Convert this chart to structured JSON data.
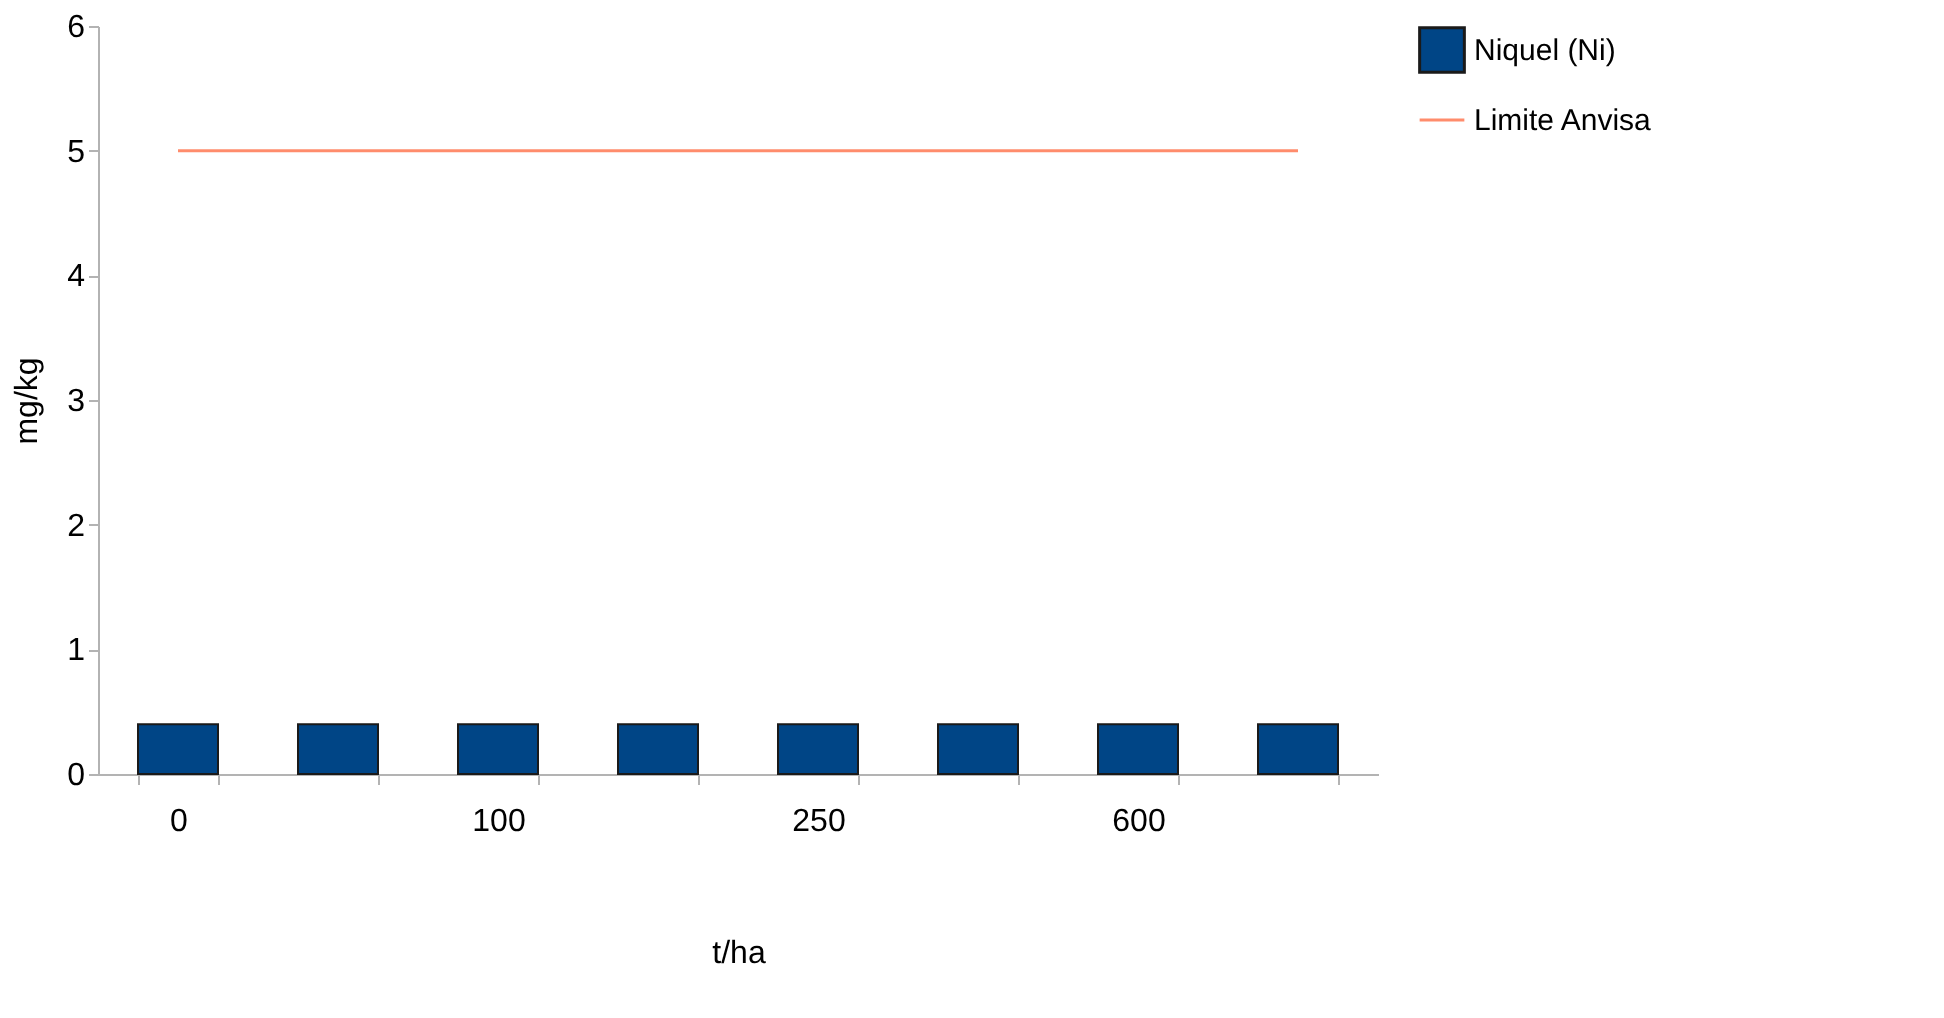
{
  "chart_data": {
    "type": "bar",
    "categories": [
      "0",
      null,
      "100",
      null,
      "250",
      null,
      "600",
      null
    ],
    "xlabel": "t/ha",
    "ylabel": "mg/kg",
    "ylim": [
      0,
      6
    ],
    "yticks": [
      0,
      1,
      2,
      3,
      4,
      5,
      6
    ],
    "grid": false,
    "legend": "right",
    "series": [
      {
        "name": "Niquel (Ni)",
        "color": "#004586",
        "values": [
          0.4,
          0.4,
          0.4,
          0.4,
          0.4,
          0.4,
          0.4,
          0.4
        ]
      },
      {
        "name": "Limite Anvisa",
        "type": "line",
        "color": "#ff8c6c",
        "values": [
          5,
          5,
          5,
          5,
          5,
          5,
          5,
          5
        ]
      }
    ]
  }
}
